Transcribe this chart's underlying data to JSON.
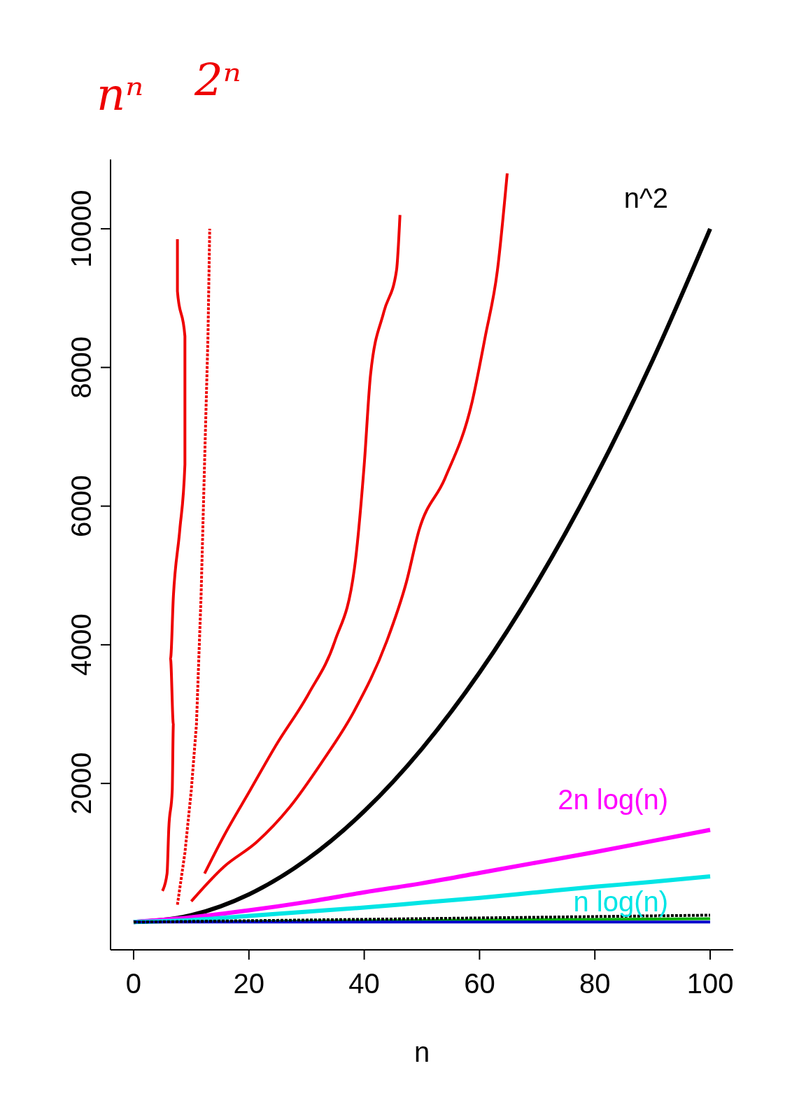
{
  "chart_data": {
    "type": "line",
    "xlabel": "n",
    "annotations": [
      "nⁿ",
      "2ⁿ"
    ],
    "xlim": [
      -4,
      104
    ],
    "ylim": [
      -400,
      11000
    ],
    "xticks": [
      0,
      20,
      40,
      60,
      80,
      100
    ],
    "yticks": [
      2000,
      4000,
      6000,
      8000,
      10000
    ],
    "series": [
      {
        "name": "n^2",
        "color": "#000000",
        "x": [
          0,
          10,
          20,
          30,
          40,
          50,
          60,
          70,
          80,
          90,
          100
        ],
        "values": [
          0,
          100,
          400,
          900,
          1600,
          2500,
          3600,
          4900,
          6400,
          8100,
          10000
        ]
      },
      {
        "name": "2n log(n)",
        "color": "#ff00ff",
        "x": [
          0,
          10,
          20,
          30,
          40,
          50,
          60,
          70,
          80,
          90,
          100
        ],
        "values": [
          0,
          70,
          170,
          290,
          430,
          560,
          710,
          860,
          1010,
          1170,
          1330
        ]
      },
      {
        "name": "n log(n)",
        "color": "#00e5e5",
        "x": [
          0,
          10,
          20,
          30,
          40,
          50,
          60,
          70,
          80,
          90,
          100
        ],
        "values": [
          0,
          30,
          90,
          150,
          210,
          280,
          350,
          430,
          510,
          580,
          660
        ]
      },
      {
        "color": "#000000",
        "line_style": "dashed",
        "x": [
          0,
          100
        ],
        "values": [
          0,
          100
        ]
      },
      {
        "color": "#00b000",
        "x": [
          0,
          100
        ],
        "values": [
          0,
          50
        ]
      },
      {
        "color": "#0000cc",
        "x": [
          0,
          100
        ],
        "values": [
          0,
          0
        ]
      },
      {
        "color": "#ee0000",
        "x": [
          5.0,
          5.8,
          6.1,
          6.7,
          6.9,
          6.4,
          6.9,
          8.0,
          8.9,
          8.9,
          8.9,
          7.6,
          7.6
        ],
        "values": [
          450,
          700,
          1350,
          1900,
          2850,
          3800,
          4700,
          5650,
          6600,
          7500,
          8450,
          9100,
          9850
        ]
      },
      {
        "color": "#ee0000",
        "line_style": "dashed",
        "x": [
          7.6,
          8.9,
          10,
          10.9,
          11.7,
          12.3,
          12.9,
          13.2
        ],
        "values": [
          250,
          1000,
          1900,
          2850,
          4700,
          6600,
          8450,
          10000
        ]
      },
      {
        "color": "#ee0000",
        "x": [
          12.3,
          15.7,
          20.2,
          24.7,
          30.4,
          34.9,
          38.3,
          40.0,
          41.1,
          43.4,
          45.6,
          46.2
        ],
        "values": [
          700,
          1250,
          1900,
          2550,
          3300,
          4050,
          5100,
          6600,
          7900,
          8800,
          9400,
          10200
        ]
      },
      {
        "color": "#ee0000",
        "x": [
          10,
          15.7,
          21.3,
          27,
          32.6,
          38.3,
          43.9,
          47.3,
          49.5,
          54,
          58.7,
          61,
          63.1,
          64.8
        ],
        "values": [
          300,
          800,
          1150,
          1650,
          2300,
          3050,
          4050,
          4900,
          5650,
          6400,
          7500,
          8450,
          9400,
          10800
        ]
      }
    ]
  }
}
